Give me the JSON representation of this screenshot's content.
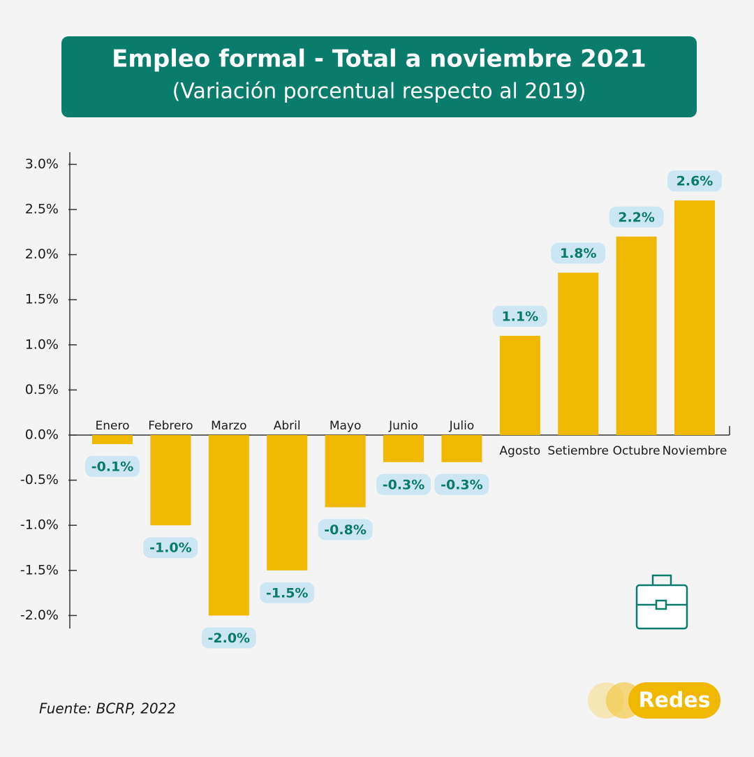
{
  "chart_data": {
    "type": "bar",
    "title": "Empleo formal - Total a noviembre 2021",
    "subtitle": "(Variación porcentual respecto al 2019)",
    "categories": [
      "Enero",
      "Febrero",
      "Marzo",
      "Abril",
      "Mayo",
      "Junio",
      "Julio",
      "Agosto",
      "Setiembre",
      "Octubre",
      "Noviembre"
    ],
    "values": [
      -0.1,
      -1.0,
      -2.0,
      -1.5,
      -0.8,
      -0.3,
      -0.3,
      1.1,
      1.8,
      2.2,
      2.6
    ],
    "value_labels": [
      "-0.1%",
      "-1.0%",
      "-2.0%",
      "-1.5%",
      "-0.8%",
      "-0.3%",
      "-0.3%",
      "1.1%",
      "1.8%",
      "2.2%",
      "2.6%"
    ],
    "color": "#f0b800",
    "ylim": [
      -2.0,
      3.0
    ],
    "yticks": [
      {
        "value": -2.0,
        "label": "-2.0%"
      },
      {
        "value": -1.5,
        "label": "-1.5%"
      },
      {
        "value": -1.0,
        "label": "-1.0%"
      },
      {
        "value": -0.5,
        "label": "-0.5%"
      },
      {
        "value": 0.0,
        "label": "0.0%"
      },
      {
        "value": 0.5,
        "label": "0.5%"
      },
      {
        "value": 1.0,
        "label": "1.0%"
      },
      {
        "value": 1.5,
        "label": "1.5%"
      },
      {
        "value": 2.0,
        "label": "2.0%"
      },
      {
        "value": 2.5,
        "label": "2.5%"
      },
      {
        "value": 3.0,
        "label": "3.0%"
      }
    ],
    "source": "Fuente: BCRP, 2022",
    "brand": "Redes"
  }
}
